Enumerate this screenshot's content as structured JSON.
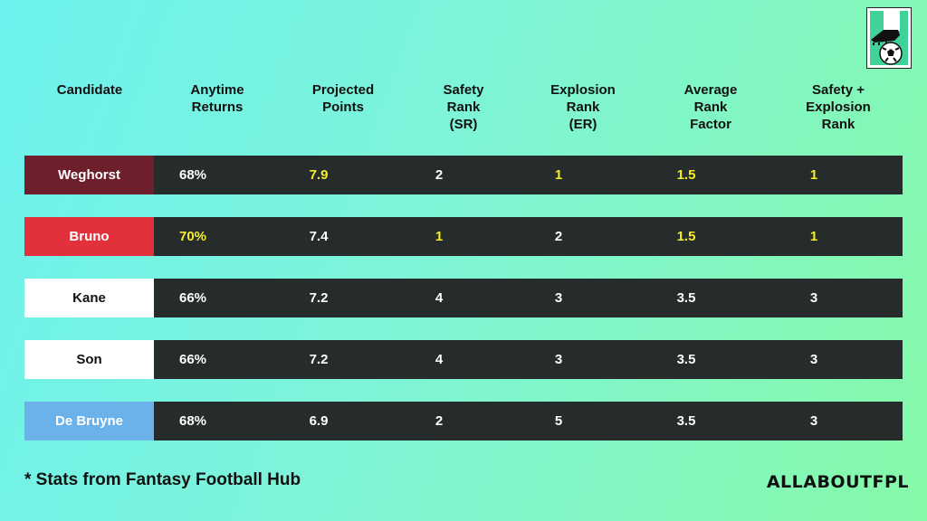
{
  "headers": [
    "Candidate",
    "Anytime\nReturns",
    "Projected\nPoints",
    "Safety\nRank\n(SR)",
    "Explosion\nRank\n(ER)",
    "Average\nRank\nFactor",
    "Safety +\nExplosion\nRank"
  ],
  "rows": [
    {
      "name": "Weghorst",
      "name_bg": "#6e1f2c",
      "name_color": "#ffffff",
      "values": [
        "68%",
        "7.9",
        "2",
        "1",
        "1.5",
        "1"
      ],
      "highlight": [
        false,
        true,
        false,
        true,
        true,
        true
      ]
    },
    {
      "name": "Bruno",
      "name_bg": "#e2313b",
      "name_color": "#ffffff",
      "values": [
        "70%",
        "7.4",
        "1",
        "2",
        "1.5",
        "1"
      ],
      "highlight": [
        true,
        false,
        true,
        false,
        true,
        true
      ]
    },
    {
      "name": "Kane",
      "name_bg": "#ffffff",
      "name_color": "#111111",
      "values": [
        "66%",
        "7.2",
        "4",
        "3",
        "3.5",
        "3"
      ],
      "highlight": [
        false,
        false,
        false,
        false,
        false,
        false
      ]
    },
    {
      "name": "Son",
      "name_bg": "#ffffff",
      "name_color": "#111111",
      "values": [
        "66%",
        "7.2",
        "4",
        "3",
        "3.5",
        "3"
      ],
      "highlight": [
        false,
        false,
        false,
        false,
        false,
        false
      ]
    },
    {
      "name": "De Bruyne",
      "name_bg": "#6cb2ea",
      "name_color": "#ffffff",
      "values": [
        "68%",
        "6.9",
        "2",
        "5",
        "3.5",
        "3"
      ],
      "highlight": [
        false,
        false,
        false,
        false,
        false,
        false
      ]
    }
  ],
  "footnote": "*  Stats from Fantasy Football Hub",
  "brand": "ALLABOUTFPL",
  "logo_icon": "boot-and-football-icon",
  "colors": {
    "highlight": "#f5ee2a",
    "row_bg": "#262b2b"
  }
}
